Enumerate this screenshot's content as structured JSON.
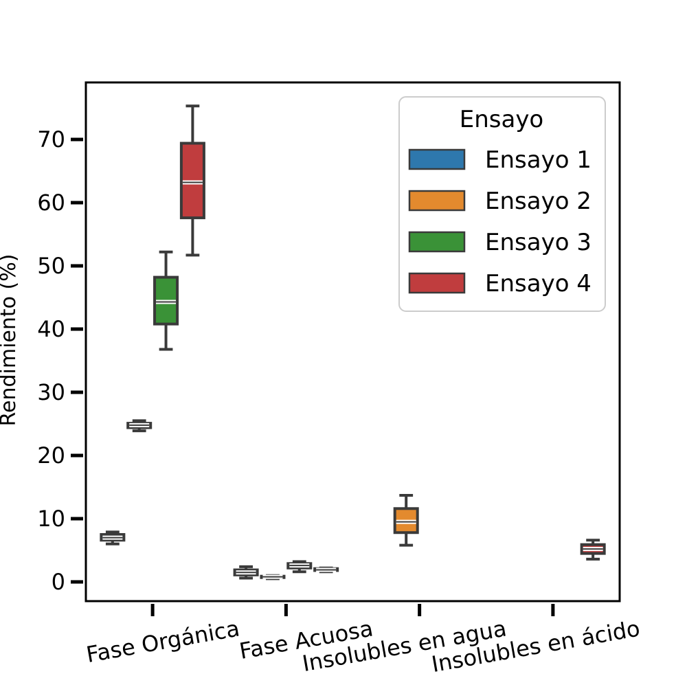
{
  "chart_data": {
    "type": "box",
    "title": "",
    "xlabel": "",
    "ylabel": "Rendimiento (%)",
    "ylim": [
      -3,
      79
    ],
    "yticks": [
      0,
      10,
      20,
      30,
      40,
      50,
      60,
      70
    ],
    "grid": false,
    "legend": {
      "title": "Ensayo",
      "position": "top-right"
    },
    "categories": [
      "Fase Orgánica",
      "Fase Acuosa",
      "Insolubles en agua",
      "Insolubles en ácido"
    ],
    "series": [
      {
        "name": "Ensayo 1",
        "color": "#2e78ad",
        "boxes": [
          {
            "category": "Fase Orgánica",
            "whislo": 6.0,
            "q1": 6.6,
            "med": 7.0,
            "q3": 7.5,
            "whishi": 7.9
          },
          {
            "category": "Fase Acuosa",
            "whislo": 0.6,
            "q1": 1.1,
            "med": 1.5,
            "q3": 1.9,
            "whishi": 2.4
          }
        ]
      },
      {
        "name": "Ensayo 2",
        "color": "#e38a2e",
        "boxes": [
          {
            "category": "Fase Orgánica",
            "whislo": 23.9,
            "q1": 24.4,
            "med": 24.8,
            "q3": 25.1,
            "whishi": 25.5
          },
          {
            "category": "Fase Acuosa",
            "whislo": 0.5,
            "q1": 0.7,
            "med": 0.8,
            "q3": 0.9,
            "whishi": 1.0
          },
          {
            "category": "Insolubles en agua",
            "whislo": 5.8,
            "q1": 7.8,
            "med": 9.5,
            "q3": 11.6,
            "whishi": 13.7
          }
        ]
      },
      {
        "name": "Ensayo 3",
        "color": "#3a9237",
        "boxes": [
          {
            "category": "Fase Orgánica",
            "whislo": 36.8,
            "q1": 40.8,
            "med": 44.3,
            "q3": 48.2,
            "whishi": 52.2
          },
          {
            "category": "Fase Acuosa",
            "whislo": 1.6,
            "q1": 2.2,
            "med": 2.6,
            "q3": 2.9,
            "whishi": 3.2
          }
        ]
      },
      {
        "name": "Ensayo 4",
        "color": "#c03d3e",
        "boxes": [
          {
            "category": "Fase Orgánica",
            "whislo": 51.7,
            "q1": 57.6,
            "med": 63.2,
            "q3": 69.4,
            "whishi": 75.3
          },
          {
            "category": "Fase Acuosa",
            "whislo": 1.6,
            "q1": 1.8,
            "med": 1.9,
            "q3": 2.1,
            "whishi": 2.2
          },
          {
            "category": "Insolubles en ácido",
            "whislo": 3.6,
            "q1": 4.5,
            "med": 5.2,
            "q3": 5.9,
            "whishi": 6.6
          }
        ]
      }
    ]
  }
}
